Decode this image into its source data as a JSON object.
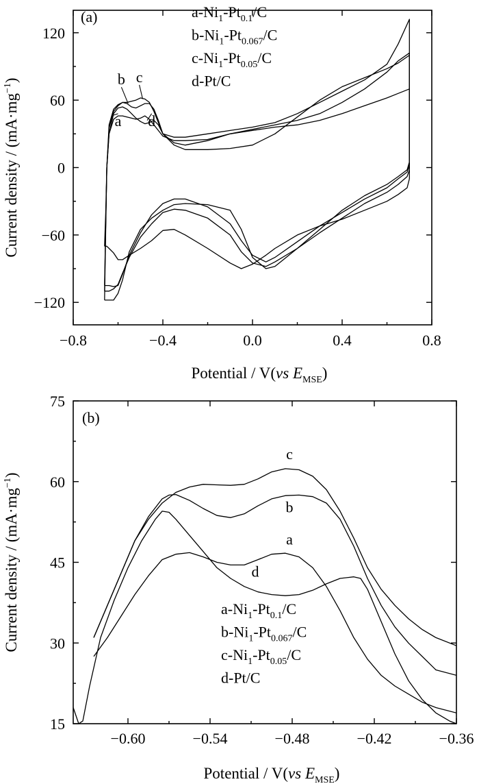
{
  "chart_data": [
    {
      "type": "line",
      "panel_label": "(a)",
      "xlabel": {
        "main": "Potential / V(",
        "italic": "vs E",
        "sub": "MSE",
        "close": ")"
      },
      "ylabel": {
        "main": "Current density / (mA·mg",
        "sup": "−1",
        "close": ")"
      },
      "xlim": [
        -0.8,
        0.8
      ],
      "ylim": [
        -140,
        140
      ],
      "xticks": [
        -0.8,
        -0.4,
        0.0,
        0.4,
        0.8
      ],
      "xtick_labels": [
        "−0.8",
        "−0.4",
        "0.0",
        "0.4",
        "0.8"
      ],
      "yticks": [
        -120,
        -60,
        0,
        60,
        120
      ],
      "ytick_labels": [
        "−120",
        "−60",
        "0",
        "60",
        "120"
      ],
      "grid": false,
      "legend_position": "top-center",
      "legend": [
        {
          "pre": "a-Ni",
          "s1": "1",
          "mid": "-Pt",
          "s2": "0.1",
          "post": "/C"
        },
        {
          "pre": "b-Ni",
          "s1": "1",
          "mid": "-Pt",
          "s2": "0.067",
          "post": "/C"
        },
        {
          "pre": "c-Ni",
          "s1": "1",
          "mid": "-Pt",
          "s2": "0.05",
          "post": "/C"
        },
        {
          "pre": "d-Pt/C",
          "s1": "",
          "mid": "",
          "s2": "",
          "post": ""
        }
      ],
      "series": [
        {
          "label": "a",
          "label_anchor": [
            -0.6,
            37
          ],
          "leader_to": [
            -0.63,
            46
          ],
          "x": [
            -0.66,
            -0.655,
            -0.65,
            -0.64,
            -0.62,
            -0.6,
            -0.58,
            -0.56,
            -0.54,
            -0.52,
            -0.5,
            -0.48,
            -0.46,
            -0.44,
            -0.42,
            -0.4,
            -0.35,
            -0.3,
            -0.2,
            -0.1,
            0.0,
            0.1,
            0.2,
            0.3,
            0.4,
            0.5,
            0.6,
            0.65,
            0.7,
            0.7,
            0.69,
            0.65,
            0.6,
            0.5,
            0.4,
            0.3,
            0.2,
            0.1,
            0.06,
            0.0,
            -0.05,
            -0.1,
            -0.2,
            -0.3,
            -0.35,
            -0.4,
            -0.45,
            -0.5,
            -0.55,
            -0.58,
            -0.6,
            -0.62,
            -0.64,
            -0.65,
            -0.655,
            -0.66
          ],
          "y": [
            -70,
            -40,
            0,
            30,
            43,
            46,
            46,
            45,
            44,
            43,
            44,
            46,
            43,
            38,
            33,
            28,
            24,
            24,
            25,
            30,
            33,
            36,
            38,
            42,
            48,
            55,
            62,
            66,
            70,
            -10,
            -18,
            -24,
            -30,
            -38,
            -46,
            -52,
            -60,
            -72,
            -78,
            -86,
            -90,
            -85,
            -72,
            -60,
            -55,
            -56,
            -65,
            -72,
            -78,
            -82,
            -82,
            -76,
            -72,
            -70,
            -70,
            -70
          ]
        },
        {
          "label": "b",
          "label_anchor": [
            -0.585,
            74
          ],
          "leader_to": [
            -0.555,
            57
          ],
          "x": [
            -0.66,
            -0.655,
            -0.65,
            -0.64,
            -0.62,
            -0.6,
            -0.58,
            -0.56,
            -0.54,
            -0.52,
            -0.5,
            -0.48,
            -0.46,
            -0.44,
            -0.42,
            -0.4,
            -0.35,
            -0.3,
            -0.2,
            -0.1,
            0.0,
            0.1,
            0.2,
            0.3,
            0.4,
            0.5,
            0.6,
            0.65,
            0.7,
            0.7,
            0.69,
            0.65,
            0.6,
            0.5,
            0.4,
            0.3,
            0.2,
            0.1,
            0.06,
            0.0,
            -0.05,
            -0.1,
            -0.2,
            -0.3,
            -0.35,
            -0.4,
            -0.45,
            -0.5,
            -0.55,
            -0.58,
            -0.6,
            -0.62,
            -0.64,
            -0.65,
            -0.655,
            -0.66
          ],
          "y": [
            -110,
            -50,
            0,
            35,
            50,
            55,
            58,
            57,
            54,
            53,
            55,
            57,
            57,
            52,
            42,
            30,
            20,
            16,
            16,
            17,
            20,
            30,
            45,
            60,
            72,
            80,
            88,
            93,
            100,
            -2,
            -8,
            -15,
            -22,
            -32,
            -45,
            -58,
            -72,
            -84,
            -88,
            -85,
            -75,
            -60,
            -45,
            -38,
            -37,
            -40,
            -50,
            -62,
            -80,
            -94,
            -104,
            -108,
            -110,
            -110,
            -110,
            -110
          ]
        },
        {
          "label": "c",
          "label_anchor": [
            -0.505,
            76
          ],
          "leader_to": [
            -0.49,
            61
          ],
          "x": [
            -0.66,
            -0.655,
            -0.65,
            -0.64,
            -0.62,
            -0.6,
            -0.58,
            -0.56,
            -0.54,
            -0.52,
            -0.5,
            -0.48,
            -0.46,
            -0.44,
            -0.42,
            -0.4,
            -0.35,
            -0.3,
            -0.2,
            -0.1,
            0.0,
            0.1,
            0.2,
            0.3,
            0.4,
            0.5,
            0.6,
            0.65,
            0.7,
            0.7,
            0.69,
            0.65,
            0.6,
            0.5,
            0.4,
            0.3,
            0.2,
            0.1,
            0.06,
            0.0,
            -0.05,
            -0.1,
            -0.2,
            -0.3,
            -0.35,
            -0.4,
            -0.45,
            -0.5,
            -0.55,
            -0.58,
            -0.6,
            -0.62,
            -0.64,
            -0.65,
            -0.655,
            -0.66
          ],
          "y": [
            -105,
            -50,
            0,
            38,
            52,
            56,
            58,
            58,
            59,
            60,
            62,
            61,
            58,
            50,
            40,
            30,
            27,
            27,
            30,
            33,
            36,
            40,
            48,
            58,
            68,
            78,
            92,
            110,
            132,
            2,
            -4,
            -10,
            -18,
            -28,
            -40,
            -52,
            -66,
            -80,
            -84,
            -78,
            -65,
            -50,
            -35,
            -28,
            -28,
            -32,
            -42,
            -58,
            -78,
            -95,
            -105,
            -106,
            -105,
            -105,
            -105,
            -105
          ]
        },
        {
          "label": "d",
          "label_anchor": [
            -0.45,
            37
          ],
          "leader_to": [
            -0.47,
            42
          ],
          "x": [
            -0.66,
            -0.655,
            -0.65,
            -0.64,
            -0.62,
            -0.6,
            -0.58,
            -0.56,
            -0.54,
            -0.52,
            -0.5,
            -0.48,
            -0.46,
            -0.44,
            -0.42,
            -0.4,
            -0.35,
            -0.3,
            -0.2,
            -0.1,
            0.0,
            0.1,
            0.2,
            0.3,
            0.4,
            0.5,
            0.6,
            0.65,
            0.7,
            0.7,
            0.69,
            0.65,
            0.6,
            0.5,
            0.4,
            0.3,
            0.2,
            0.1,
            0.06,
            0.0,
            -0.05,
            -0.1,
            -0.2,
            -0.3,
            -0.35,
            -0.4,
            -0.45,
            -0.5,
            -0.55,
            -0.58,
            -0.6,
            -0.62,
            -0.64,
            -0.65,
            -0.655,
            -0.66
          ],
          "y": [
            -118,
            -55,
            0,
            30,
            48,
            53,
            54,
            52,
            48,
            44,
            41,
            39,
            40,
            42,
            38,
            30,
            22,
            20,
            24,
            30,
            34,
            38,
            42,
            48,
            58,
            70,
            85,
            95,
            102,
            5,
            -2,
            -8,
            -15,
            -25,
            -38,
            -55,
            -72,
            -88,
            -90,
            -80,
            -55,
            -38,
            -33,
            -32,
            -33,
            -38,
            -45,
            -55,
            -75,
            -100,
            -112,
            -118,
            -118,
            -118,
            -118,
            -118
          ]
        }
      ]
    },
    {
      "type": "line",
      "panel_label": "(b)",
      "xlabel": {
        "main": "Potential / V(",
        "italic": "vs E",
        "sub": "MSE",
        "close": ")"
      },
      "ylabel": {
        "main": "Current  density / (mA·mg",
        "sup": "−1",
        "close": ")"
      },
      "xlim": [
        -0.64,
        -0.36
      ],
      "ylim": [
        15,
        75
      ],
      "xticks": [
        -0.6,
        -0.54,
        -0.48,
        -0.42,
        -0.36
      ],
      "xtick_labels": [
        "−0.60",
        "−0.54",
        "−0.48",
        "−0.42",
        "−0.36"
      ],
      "yticks": [
        15,
        30,
        45,
        60,
        75
      ],
      "ytick_labels": [
        "15",
        "30",
        "45",
        "60",
        "75"
      ],
      "grid": false,
      "legend_position": "bottom-center",
      "legend": [
        {
          "pre": "a-Ni",
          "s1": "1",
          "mid": "-Pt",
          "s2": "0.1",
          "post": "/C"
        },
        {
          "pre": "b-Ni",
          "s1": "1",
          "mid": "-Pt",
          "s2": "0.067",
          "post": "/C"
        },
        {
          "pre": "c-Ni",
          "s1": "1",
          "mid": "-Pt",
          "s2": "0.05",
          "post": "/C"
        },
        {
          "pre": "d-Pt/C",
          "s1": "",
          "mid": "",
          "s2": "",
          "post": ""
        }
      ],
      "series": [
        {
          "label": "a",
          "label_anchor": [
            -0.482,
            48.3
          ],
          "x": [
            -0.625,
            -0.615,
            -0.605,
            -0.595,
            -0.585,
            -0.575,
            -0.565,
            -0.555,
            -0.545,
            -0.535,
            -0.525,
            -0.515,
            -0.505,
            -0.495,
            -0.485,
            -0.475,
            -0.465,
            -0.455,
            -0.445,
            -0.435,
            -0.425,
            -0.415,
            -0.405,
            -0.395,
            -0.385,
            -0.375,
            -0.36
          ],
          "y": [
            27.5,
            31,
            35,
            39,
            42.5,
            45.5,
            46.5,
            46.8,
            46,
            45,
            44.5,
            44.5,
            45.5,
            46.5,
            46.7,
            46,
            44,
            40.5,
            36,
            31,
            27,
            24,
            22,
            20.5,
            19,
            18,
            17
          ]
        },
        {
          "label": "b",
          "label_anchor": [
            -0.482,
            54.3
          ],
          "x": [
            -0.625,
            -0.615,
            -0.605,
            -0.595,
            -0.585,
            -0.575,
            -0.57,
            -0.565,
            -0.555,
            -0.545,
            -0.535,
            -0.525,
            -0.515,
            -0.505,
            -0.495,
            -0.485,
            -0.475,
            -0.465,
            -0.455,
            -0.445,
            -0.435,
            -0.425,
            -0.415,
            -0.405,
            -0.395,
            -0.385,
            -0.375,
            -0.36
          ],
          "y": [
            31,
            37,
            43,
            49,
            53.5,
            56.8,
            57.5,
            57.6,
            56.5,
            55,
            53.7,
            53.3,
            54,
            55.5,
            56.8,
            57.4,
            57.5,
            57.2,
            56,
            53,
            48,
            42,
            37,
            33,
            30,
            27.5,
            25,
            24
          ]
        },
        {
          "label": "c",
          "label_anchor": [
            -0.482,
            64.2
          ],
          "x": [
            -0.625,
            -0.615,
            -0.605,
            -0.595,
            -0.585,
            -0.575,
            -0.565,
            -0.555,
            -0.545,
            -0.535,
            -0.525,
            -0.515,
            -0.505,
            -0.495,
            -0.485,
            -0.475,
            -0.465,
            -0.455,
            -0.445,
            -0.435,
            -0.425,
            -0.415,
            -0.405,
            -0.395,
            -0.385,
            -0.375,
            -0.36
          ],
          "y": [
            31,
            37,
            43,
            49,
            53,
            56,
            58,
            59,
            59.5,
            59.4,
            59.3,
            59.5,
            60.5,
            61.8,
            62.4,
            62.2,
            61,
            58.5,
            54.5,
            49.5,
            44,
            40,
            37,
            34.5,
            32.5,
            31,
            29.5
          ]
        },
        {
          "label": "d",
          "label_anchor": [
            -0.507,
            42.3
          ],
          "x": [
            -0.64,
            -0.636,
            -0.633,
            -0.628,
            -0.62,
            -0.61,
            -0.6,
            -0.59,
            -0.58,
            -0.575,
            -0.57,
            -0.565,
            -0.555,
            -0.545,
            -0.535,
            -0.525,
            -0.515,
            -0.505,
            -0.495,
            -0.485,
            -0.475,
            -0.465,
            -0.455,
            -0.445,
            -0.435,
            -0.43,
            -0.425,
            -0.415,
            -0.405,
            -0.395,
            -0.385,
            -0.375,
            -0.365,
            -0.36
          ],
          "y": [
            18,
            15,
            15.5,
            22,
            31,
            38,
            44,
            49,
            53,
            54.5,
            54.3,
            53,
            50,
            47,
            44,
            42,
            40.5,
            39.5,
            39,
            38.8,
            39,
            39.8,
            41,
            42,
            42.3,
            42,
            40,
            34,
            28,
            23,
            19.5,
            17,
            15.5,
            15
          ]
        }
      ]
    }
  ]
}
